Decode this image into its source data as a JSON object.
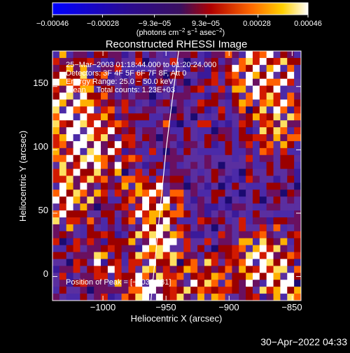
{
  "chart_data": {
    "type": "heatmap",
    "title": "Reconstructed RHESSI Image",
    "xlabel": "Heliocentric X (arcsec)",
    "ylabel": "Heliocentric Y (arcsec)",
    "xlim": [
      -1040,
      -843
    ],
    "ylim": [
      -19,
      178
    ],
    "x_ticks": [
      -1000,
      -950,
      -900,
      -850
    ],
    "x_tick_labels": [
      "−1000",
      "−950",
      "−900",
      "−850"
    ],
    "y_ticks": [
      0,
      50,
      100,
      150
    ],
    "y_tick_labels": [
      "0",
      "50",
      "100",
      "150"
    ],
    "colorbar": {
      "min": -0.00046,
      "max": 0.00046,
      "ticks": [
        -0.00046,
        -0.00028,
        -9.3e-05,
        9.3e-05,
        0.00028,
        0.00046
      ],
      "tick_labels": [
        "−0.00046",
        "−0.00028",
        "−9.3e−05",
        "9.3e−05",
        "0.00028",
        "0.00046"
      ],
      "units_main": "(photons cm",
      "units_sup1": "−2",
      "units_mid": " s",
      "units_sup2": "−1",
      "units_end": " asec",
      "units_sup3": "−2",
      "units_close": ")"
    },
    "annotations": {
      "time_range": "25−Mar−2003 01:18:44.000 to 01:20:24.000",
      "detectors": "Detectors: 3F 4F 5F 6F 7F 8F, Att 0",
      "energy_range": "Energy Range: 25.0 − 50.0 keV",
      "clean_info": "Clean     Total counts: 1.23E+03",
      "peak_label": "Position of Peak = [",
      "peak_value": "−1032,131",
      "peak_close": "]"
    },
    "peak_position": [
      -1032,
      131
    ],
    "limb_curve": [
      [
        -962,
        -19
      ],
      [
        -958,
        20
      ],
      [
        -954,
        60
      ],
      [
        -950,
        100
      ],
      [
        -945,
        140
      ],
      [
        -940,
        178
      ]
    ],
    "grid": false
  },
  "footer": {
    "timestamp": "30−Apr−2022 04:33"
  }
}
